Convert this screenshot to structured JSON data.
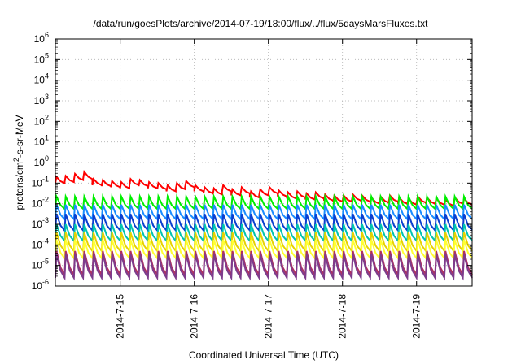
{
  "chart_data": {
    "type": "line",
    "title": "/data/run/goesPlots/archive/2014-07-19/18:00/flux/../flux/5daysMarsFluxes.txt",
    "xlabel": "Coordinated Universal Time (UTC)",
    "ylabel": {
      "before": "protons/cm",
      "sup": "2",
      "after": "-s-sr-MeV"
    },
    "y_scale": "log",
    "ylim_exp": [
      -6,
      6
    ],
    "y_tick_exponents": [
      -6,
      -5,
      -4,
      -3,
      -2,
      -1,
      0,
      1,
      2,
      3,
      4,
      5,
      6
    ],
    "x_start": "2014-07-14 03:00",
    "x_end": "2014-07-19 18:00",
    "x_ticks": [
      "2014-7-15",
      "2014-7-16",
      "2014-7-17",
      "2014-7-18",
      "2014-7-19"
    ],
    "grid": true,
    "sawtooth_period_hours": 3,
    "series": [
      {
        "color": "#ff0000",
        "peaks_exp": [
          -0.7,
          -0.65,
          -0.55,
          -0.45,
          -0.8,
          -0.85,
          -0.9,
          -0.95,
          -0.8,
          -0.85,
          -0.95,
          -1.0,
          -1.1,
          -1.0,
          -0.9,
          -1.1,
          -1.2,
          -1.25,
          -1.1,
          -1.3,
          -1.2,
          -1.4,
          -1.3,
          -1.2,
          -1.35,
          -1.45,
          -1.4,
          -1.5,
          -1.45,
          -1.55,
          -1.6,
          -1.6,
          -1.55,
          -1.6,
          -1.7,
          -1.65,
          -1.6,
          -1.7,
          -1.75,
          -1.65,
          -1.7,
          -1.75,
          -1.8,
          -1.7,
          -1.75,
          -0.8
        ],
        "trough_exp": [
          -1.0,
          -0.95,
          -0.85,
          -0.8,
          -1.1,
          -1.15,
          -1.2,
          -1.25,
          -1.1,
          -1.15,
          -1.25,
          -1.3,
          -1.4,
          -1.3,
          -1.2,
          -1.4,
          -1.5,
          -1.55,
          -1.4,
          -1.6,
          -1.5,
          -1.7,
          -1.6,
          -1.5,
          -1.65,
          -1.75,
          -1.7,
          -1.8,
          -1.75,
          -1.85,
          -1.9,
          -1.9,
          -1.85,
          -1.9,
          -2.0,
          -1.95,
          -1.9,
          -2.0,
          -2.05,
          -1.95,
          -2.0,
          -2.05,
          -2.1,
          -2.0,
          -2.05,
          -1.1
        ]
      },
      {
        "color": "#00ee00",
        "peak_exp": -1.65,
        "trough_exp": -2.25
      },
      {
        "color": "#1a8cff",
        "peak_exp": -2.05,
        "trough_exp": -2.75
      },
      {
        "color": "#0a3fd0",
        "peak_exp": -2.5,
        "trough_exp": -3.3
      },
      {
        "color": "#00c3b0",
        "peak_exp": -3.0,
        "trough_exp": -3.8
      },
      {
        "color": "#e6d200",
        "peak_exp": -3.4,
        "trough_exp": -4.3
      },
      {
        "color": "#ffff33",
        "peak_exp": -3.75,
        "trough_exp": -4.65
      },
      {
        "color": "#b03060",
        "peak_exp": -4.3,
        "trough_exp": -5.45
      },
      {
        "color": "#7d3c8c",
        "peak_exp": -4.45,
        "trough_exp": -5.6
      }
    ]
  }
}
